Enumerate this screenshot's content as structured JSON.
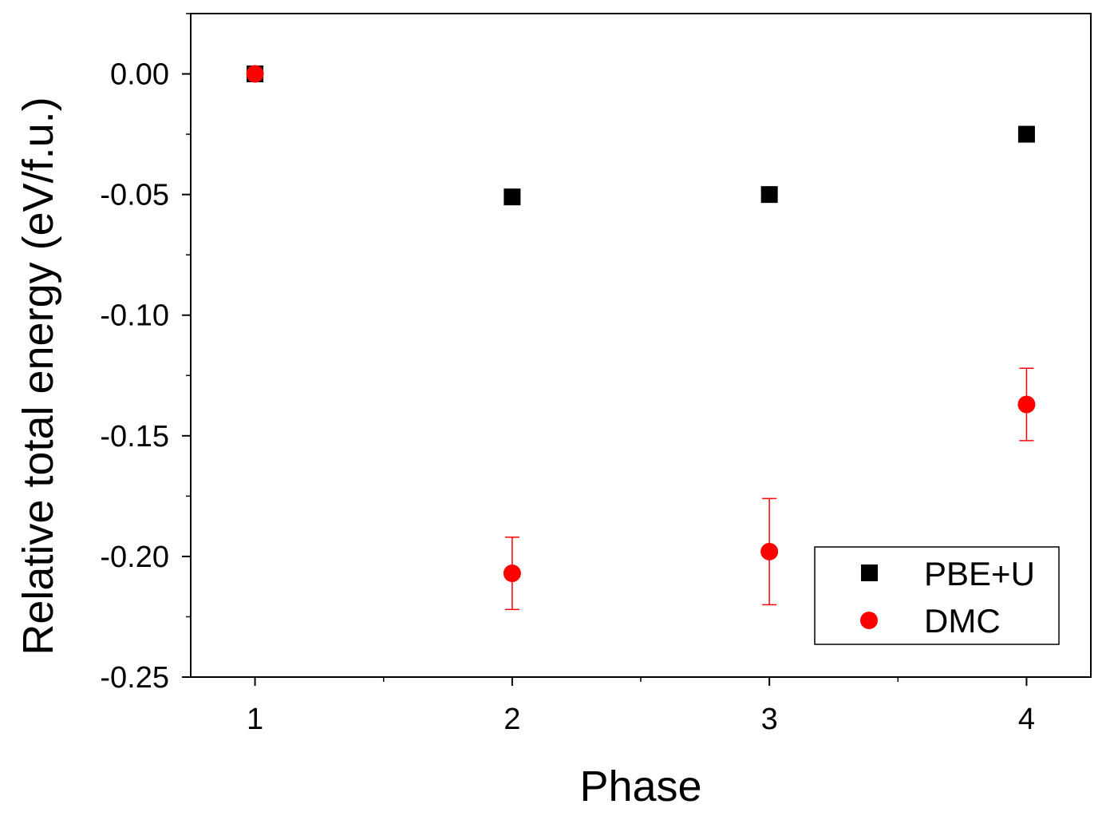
{
  "chart_data": {
    "type": "scatter",
    "xlabel": "Phase",
    "ylabel": "Relative total energy (eV/f.u.)",
    "xlim": [
      0.75,
      4.25
    ],
    "ylim": [
      -0.25,
      0.025
    ],
    "xticks": [
      1,
      2,
      3,
      4
    ],
    "xtick_labels": [
      "1",
      "2",
      "3",
      "4"
    ],
    "yticks": [
      0.0,
      -0.05,
      -0.1,
      -0.15,
      -0.2,
      -0.25
    ],
    "ytick_labels": [
      "0.00",
      "-0.05",
      "-0.10",
      "-0.15",
      "-0.20",
      "-0.25"
    ],
    "grid": false,
    "legend_position": "bottom-right",
    "series": [
      {
        "name": "PBE+U",
        "marker": "square",
        "color": "#000000",
        "x": [
          1,
          2,
          3,
          4
        ],
        "y": [
          0.0,
          -0.051,
          -0.05,
          -0.025
        ]
      },
      {
        "name": "DMC",
        "marker": "circle",
        "color": "#ff0000",
        "x": [
          1,
          2,
          3,
          4
        ],
        "y": [
          0.0,
          -0.207,
          -0.198,
          -0.137
        ],
        "yerr": [
          0.0,
          0.015,
          0.022,
          0.015
        ]
      }
    ]
  }
}
